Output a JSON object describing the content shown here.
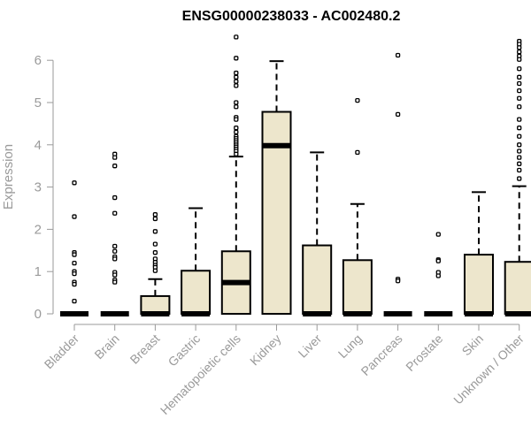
{
  "chart_data": {
    "type": "boxplot",
    "title": "ENSG00000238033 - AC002480.2",
    "ylabel": "Expression",
    "xlabel": "",
    "ylim": [
      0,
      6.6
    ],
    "yticks": [
      0,
      1,
      2,
      3,
      4,
      5,
      6
    ],
    "grid": false,
    "colors": {
      "box_fill": "#ede6cc",
      "box_stroke": "#000000",
      "axis": "#9a9a9a",
      "text": "#9a9a9a"
    },
    "groups": [
      {
        "label": "Bladder",
        "q1": 0,
        "median": 0,
        "q3": 0,
        "whisker_low": 0,
        "whisker_high": 0,
        "outliers": [
          3.1,
          2.3,
          1.45,
          1.4,
          1.2,
          1.0,
          0.95,
          0.75,
          0.7,
          0.3
        ]
      },
      {
        "label": "Brain",
        "q1": 0,
        "median": 0,
        "q3": 0,
        "whisker_low": 0,
        "whisker_high": 0,
        "outliers": [
          3.78,
          3.7,
          3.5,
          2.75,
          2.38,
          1.6,
          1.48,
          1.35,
          1.3,
          0.98,
          0.92,
          0.8,
          0.75
        ]
      },
      {
        "label": "Breast",
        "q1": 0,
        "median": 0,
        "q3": 0.42,
        "whisker_low": 0,
        "whisker_high": 0.82,
        "outliers": [
          2.35,
          2.25,
          1.95,
          1.65,
          1.45,
          1.3,
          1.22,
          1.15,
          1.1,
          1.02
        ]
      },
      {
        "label": "Gastric",
        "q1": 0,
        "median": 0,
        "q3": 1.02,
        "whisker_low": 0,
        "whisker_high": 2.5,
        "outliers": []
      },
      {
        "label": "Hematopoietic cells",
        "q1": 0,
        "median": 0.74,
        "q3": 1.48,
        "whisker_low": 0,
        "whisker_high": 3.72,
        "outliers": [
          6.55,
          6.05,
          5.7,
          5.6,
          5.5,
          5.4,
          5.0,
          4.9,
          4.65,
          4.6,
          4.4,
          4.3,
          4.2,
          4.15,
          4.1,
          4.05,
          4.0,
          3.95,
          3.9,
          3.85,
          3.78
        ]
      },
      {
        "label": "Kidney",
        "q1": 0,
        "median": 3.98,
        "q3": 4.78,
        "whisker_low": 0,
        "whisker_high": 5.98,
        "outliers": []
      },
      {
        "label": "Liver",
        "q1": 0,
        "median": 0,
        "q3": 1.62,
        "whisker_low": 0,
        "whisker_high": 3.82,
        "outliers": []
      },
      {
        "label": "Lung",
        "q1": 0,
        "median": 0,
        "q3": 1.27,
        "whisker_low": 0,
        "whisker_high": 2.6,
        "outliers": [
          5.05,
          3.82
        ]
      },
      {
        "label": "Pancreas",
        "q1": 0,
        "median": 0,
        "q3": 0,
        "whisker_low": 0,
        "whisker_high": 0,
        "outliers": [
          6.12,
          4.72,
          0.82,
          0.78
        ]
      },
      {
        "label": "Prostate",
        "q1": 0,
        "median": 0,
        "q3": 0,
        "whisker_low": 0,
        "whisker_high": 0,
        "outliers": [
          1.88,
          1.28,
          1.25,
          0.98,
          0.9
        ]
      },
      {
        "label": "Skin",
        "q1": 0,
        "median": 0,
        "q3": 1.4,
        "whisker_low": 0,
        "whisker_high": 2.88,
        "outliers": []
      },
      {
        "label": "Unknown / Other",
        "q1": 0,
        "median": 0,
        "q3": 1.23,
        "whisker_low": 0,
        "whisker_high": 3.02,
        "outliers": [
          6.45,
          6.38,
          6.3,
          6.2,
          6.1,
          6.02,
          5.8,
          5.6,
          5.45,
          5.28,
          5.1,
          4.9,
          4.6,
          4.4,
          4.2,
          4.0,
          3.85,
          3.7,
          3.55,
          3.4,
          3.2
        ]
      }
    ]
  }
}
